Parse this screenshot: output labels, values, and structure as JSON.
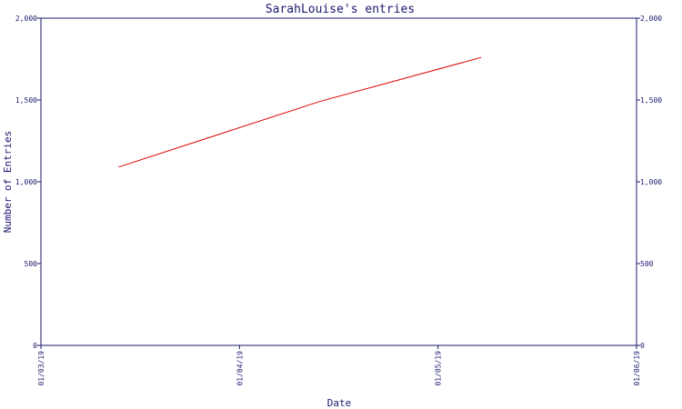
{
  "chart_data": {
    "type": "line",
    "title": "SarahLouise's entries",
    "xlabel": "Date",
    "ylabel": "Number of Entries",
    "x_ticks": [
      "01/03/19",
      "01/04/19",
      "01/05/19",
      "01/06/19"
    ],
    "y_ticks": [
      "0",
      "500",
      "1,000",
      "1,500",
      "2,000"
    ],
    "y_tick_values": [
      0,
      500,
      1000,
      1500,
      2000
    ],
    "ylim": [
      0,
      2000
    ],
    "xlim": [
      "2019-03-01",
      "2019-06-01"
    ],
    "secondary_y_axis": true,
    "grid": false,
    "series": [
      {
        "color": "#dd0000",
        "x": [
          "2019-03-13",
          "2019-04-13",
          "2019-05-08"
        ],
        "y": [
          1090,
          1490,
          1760
        ]
      }
    ]
  }
}
